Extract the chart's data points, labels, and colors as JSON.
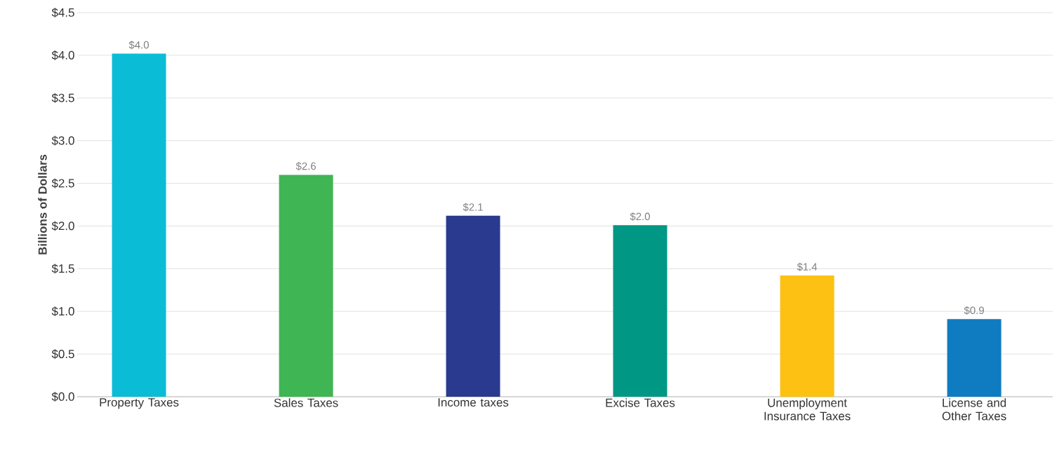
{
  "chart_data": {
    "type": "bar",
    "ylabel": "Billions of Dollars",
    "categories": [
      "Property Taxes",
      "Sales Taxes",
      "Income taxes",
      "Excise Taxes",
      "Unemployment Insurance Taxes",
      "License and Other Taxes"
    ],
    "values": [
      4.02,
      2.6,
      2.12,
      2.01,
      1.42,
      0.91
    ],
    "colors": [
      "#0bbcd6",
      "#40b554",
      "#2a3a8f",
      "#009784",
      "#fcc112",
      "#0f7bc1"
    ],
    "value_labels": [
      "$4.0",
      "$2.6",
      "$2.1",
      "$2.0",
      "$1.4",
      "$0.9"
    ],
    "ylim": [
      0,
      4.5
    ],
    "yticks": [
      {
        "value": 0,
        "label": "$0.0"
      },
      {
        "value": 0.5,
        "label": "$0.5"
      },
      {
        "value": 1,
        "label": "$1.0"
      },
      {
        "value": 1.5,
        "label": "$1.5"
      },
      {
        "value": 2,
        "label": "$2.0"
      },
      {
        "value": 2.5,
        "label": "$2.5"
      },
      {
        "value": 3,
        "label": "$3.0"
      },
      {
        "value": 3.5,
        "label": "$3.5"
      },
      {
        "value": 4,
        "label": "$4.0"
      },
      {
        "value": 4.5,
        "label": "$4.5"
      }
    ],
    "grid": "y"
  }
}
